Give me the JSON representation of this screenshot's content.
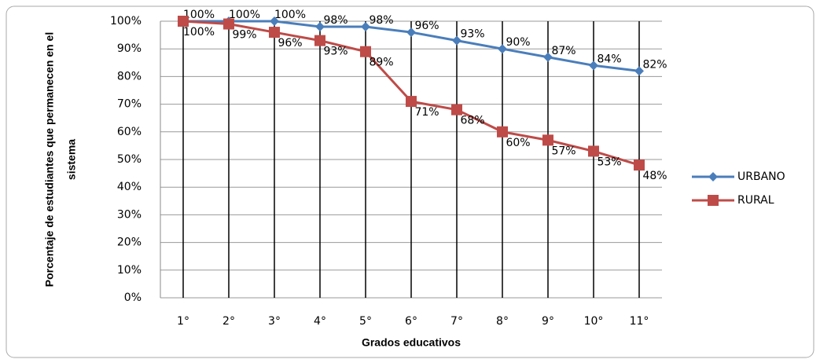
{
  "chart_data": {
    "type": "line",
    "x_label": "Grados educativos",
    "y_label": [
      "Porcentaje de estudiantes que permanecen en el",
      "sistema"
    ],
    "categories": [
      "1°",
      "2°",
      "3°",
      "4°",
      "5°",
      "6°",
      "7°",
      "8°",
      "9°",
      "10°",
      "11°"
    ],
    "series": [
      {
        "name": "URBANO",
        "color": "#4a7ebb",
        "marker": "diamond",
        "values": [
          100,
          100,
          100,
          98,
          98,
          96,
          93,
          90,
          87,
          84,
          82
        ],
        "value_labels": [
          "100%",
          "100%",
          "100%",
          "98%",
          "98%",
          "96%",
          "93%",
          "90%",
          "87%",
          "84%",
          "82%"
        ]
      },
      {
        "name": "RURAL",
        "color": "#be4b48",
        "marker": "square",
        "values": [
          100,
          99,
          96,
          93,
          89,
          71,
          68,
          60,
          57,
          53,
          48
        ],
        "value_labels": [
          "100%",
          "99%",
          "96%",
          "93%",
          "89%",
          "71%",
          "68%",
          "60%",
          "57%",
          "53%",
          "48%"
        ]
      }
    ],
    "ylim": [
      0,
      100
    ],
    "yticks": [
      {
        "value": 0,
        "label": "0%"
      },
      {
        "value": 10,
        "label": "10%"
      },
      {
        "value": 20,
        "label": "20%"
      },
      {
        "value": 30,
        "label": "30%"
      },
      {
        "value": 40,
        "label": "40%"
      },
      {
        "value": 50,
        "label": "50%"
      },
      {
        "value": 60,
        "label": "60%"
      },
      {
        "value": 70,
        "label": "70%"
      },
      {
        "value": 80,
        "label": "80%"
      },
      {
        "value": 90,
        "label": "90%"
      },
      {
        "value": 100,
        "label": "100%"
      }
    ],
    "grid": true,
    "legend": "right"
  }
}
